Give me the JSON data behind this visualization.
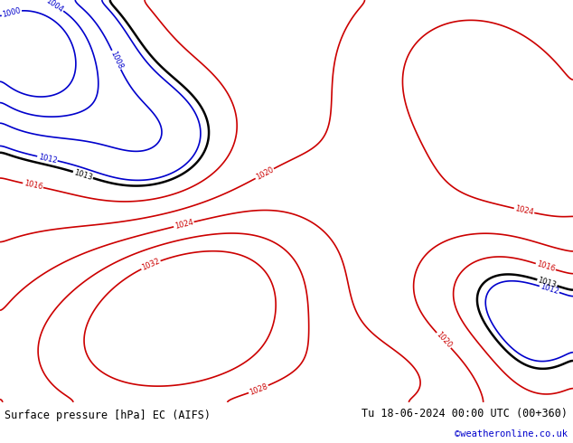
{
  "title_left": "Surface pressure [hPa] EC (AIFS)",
  "title_right": "Tu 18-06-2024 00:00 UTC (00+360)",
  "credit": "©weatheronline.co.uk",
  "credit_color": "#0000cc",
  "land_color": "#c8e8a0",
  "sea_color": "#e8e8e8",
  "footer_bg": "#d0d0d0",
  "footer_text_color": "#000000",
  "fig_width": 6.34,
  "fig_height": 4.9,
  "dpi": 100,
  "isobar_color_red": "#cc0000",
  "isobar_color_blue": "#0000cc",
  "isobar_color_black": "#000000",
  "coast_color": "#808080",
  "footer_fontsize": 8.5,
  "credit_fontsize": 7.5,
  "label_fontsize": 6,
  "extent": [
    -30,
    45,
    30,
    75
  ]
}
